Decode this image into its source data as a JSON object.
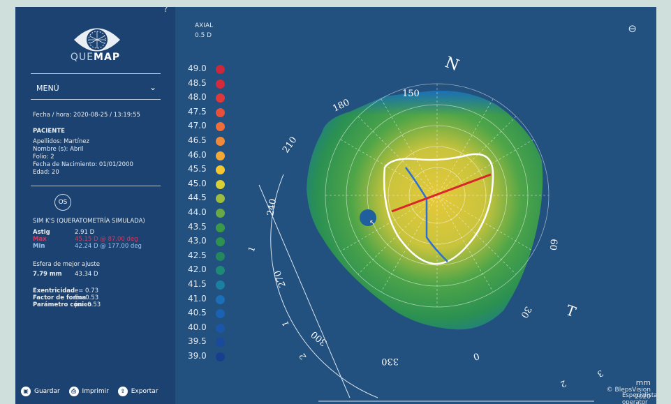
{
  "app": {
    "logo_prefix": "QUE",
    "logo_bold": "MAP",
    "help": "?"
  },
  "menu": {
    "label": "MENÚ",
    "chevron": "chevron-down-icon"
  },
  "exam": {
    "datetime": "Fecha / hora: 2020-08-25 / 13:19:55"
  },
  "patient": {
    "heading": "PACIENTE",
    "surname": "Apellidos: Martínez",
    "name": "Nombre (s): Abril",
    "folio": "Folio: 2",
    "dob": "Fecha de Nacimiento: 01/01/2000",
    "age": "Edad: 20"
  },
  "eye": "OS",
  "simk": {
    "heading": "SIM K'S (QUERATOMETRÍA SIMULADA)",
    "astig_label": "Astig",
    "astig_value": "2.91 D",
    "max_label": "Max",
    "max_value": "45.15 D @ 87.00 deg",
    "min_label": "Min",
    "min_value": "42.24 D @ 177.00 deg"
  },
  "bestfit": {
    "heading": "Esfera de mejor ajuste",
    "radius": "7.79 mm",
    "power": "43.34 D"
  },
  "shape": {
    "ecc_label": "Exentricidad",
    "ecc_value": "e= 0.73",
    "form_label": "Factor de forma",
    "form_value": "E= 0.53",
    "conic_label": "Parámetro cónico",
    "conic_value": "p= -0.53"
  },
  "footer": {
    "save": "Guardar",
    "print": "Imprimir",
    "export": "Exportar"
  },
  "map": {
    "type": "AXIAL",
    "step": "0.5 D",
    "nasal": "N",
    "temporal": "T",
    "zoom_icon": "zoom-out-icon",
    "angles": [
      "150",
      "180",
      "210",
      "240",
      "270",
      "300",
      "330",
      "0",
      "30",
      "60"
    ],
    "ruler_ticks": [
      "1",
      "1",
      "2",
      "2",
      "3"
    ],
    "specialist": "Especialista: operator",
    "unit": "mm",
    "copyright": "© BlepsVision",
    "year": "2020"
  },
  "scale": [
    {
      "v": "49.0",
      "c": "#c9283d"
    },
    {
      "v": "48.5",
      "c": "#d62a3a"
    },
    {
      "v": "48.0",
      "c": "#e03838"
    },
    {
      "v": "47.5",
      "c": "#e8503a"
    },
    {
      "v": "47.0",
      "c": "#ee6d39"
    },
    {
      "v": "46.5",
      "c": "#f08a38"
    },
    {
      "v": "46.0",
      "c": "#f3a835"
    },
    {
      "v": "45.5",
      "c": "#f4c730"
    },
    {
      "v": "45.0",
      "c": "#d9cf34"
    },
    {
      "v": "44.5",
      "c": "#9ebc3e"
    },
    {
      "v": "44.0",
      "c": "#68a845"
    },
    {
      "v": "43.5",
      "c": "#3b9a48"
    },
    {
      "v": "43.0",
      "c": "#2d9150"
    },
    {
      "v": "42.5",
      "c": "#23895c"
    },
    {
      "v": "42.0",
      "c": "#1d8a77"
    },
    {
      "v": "41.5",
      "c": "#1b7fa2"
    },
    {
      "v": "41.0",
      "c": "#1a6fb8"
    },
    {
      "v": "40.5",
      "c": "#1a63b4"
    },
    {
      "v": "40.0",
      "c": "#1a57a8"
    },
    {
      "v": "39.5",
      "c": "#194a9b"
    },
    {
      "v": "39.0",
      "c": "#183f8d"
    }
  ]
}
